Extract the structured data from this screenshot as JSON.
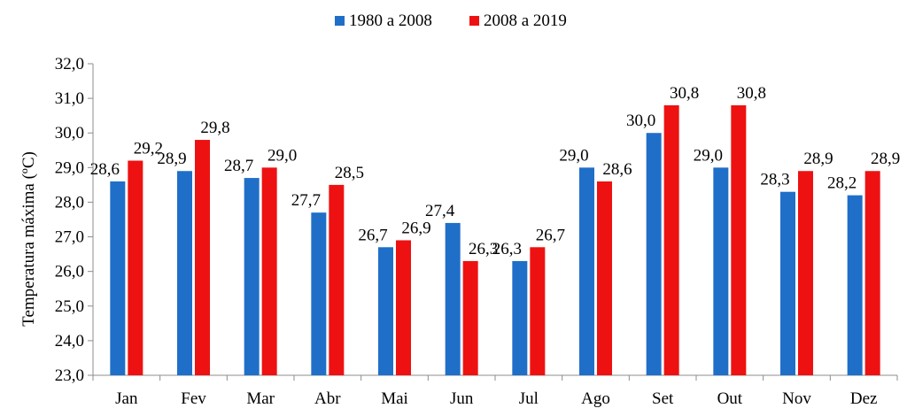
{
  "chart_data": {
    "type": "bar",
    "categories": [
      "Jan",
      "Fev",
      "Mar",
      "Abr",
      "Mai",
      "Jun",
      "Jul",
      "Ago",
      "Set",
      "Out",
      "Nov",
      "Dez"
    ],
    "series": [
      {
        "name": "1980 a 2008",
        "color": "#1f6fc8",
        "values": [
          28.6,
          28.9,
          28.7,
          27.7,
          26.7,
          27.4,
          26.3,
          29.0,
          30.0,
          29.0,
          28.3,
          28.2
        ],
        "labels": [
          "28,6",
          "28,9",
          "28,7",
          "27,7",
          "26,7",
          "27,4",
          "26,3",
          "29,0",
          "30,0",
          "29,0",
          "28,3",
          "28,2"
        ]
      },
      {
        "name": "2008 a 2019",
        "color": "#ee1111",
        "values": [
          29.2,
          29.8,
          29.0,
          28.5,
          26.9,
          26.3,
          26.7,
          28.6,
          30.8,
          30.8,
          28.9,
          28.9
        ],
        "labels": [
          "29,2",
          "29,8",
          "29,0",
          "28,5",
          "26,9",
          "26,3",
          "26,7",
          "28,6",
          "30,8",
          "30,8",
          "28,9",
          "28,9"
        ]
      }
    ],
    "ylabel": "Temperatura máxima (ºC)",
    "xlabel": "",
    "ylim": [
      23,
      32
    ],
    "yticks": [
      23,
      24,
      25,
      26,
      27,
      28,
      29,
      30,
      31,
      32
    ],
    "ytick_labels": [
      "23,0",
      "24,0",
      "25,0",
      "26,0",
      "27,0",
      "28,0",
      "29,0",
      "30,0",
      "31,0",
      "32,0"
    ],
    "grid": false,
    "legend_position": "top-center"
  }
}
